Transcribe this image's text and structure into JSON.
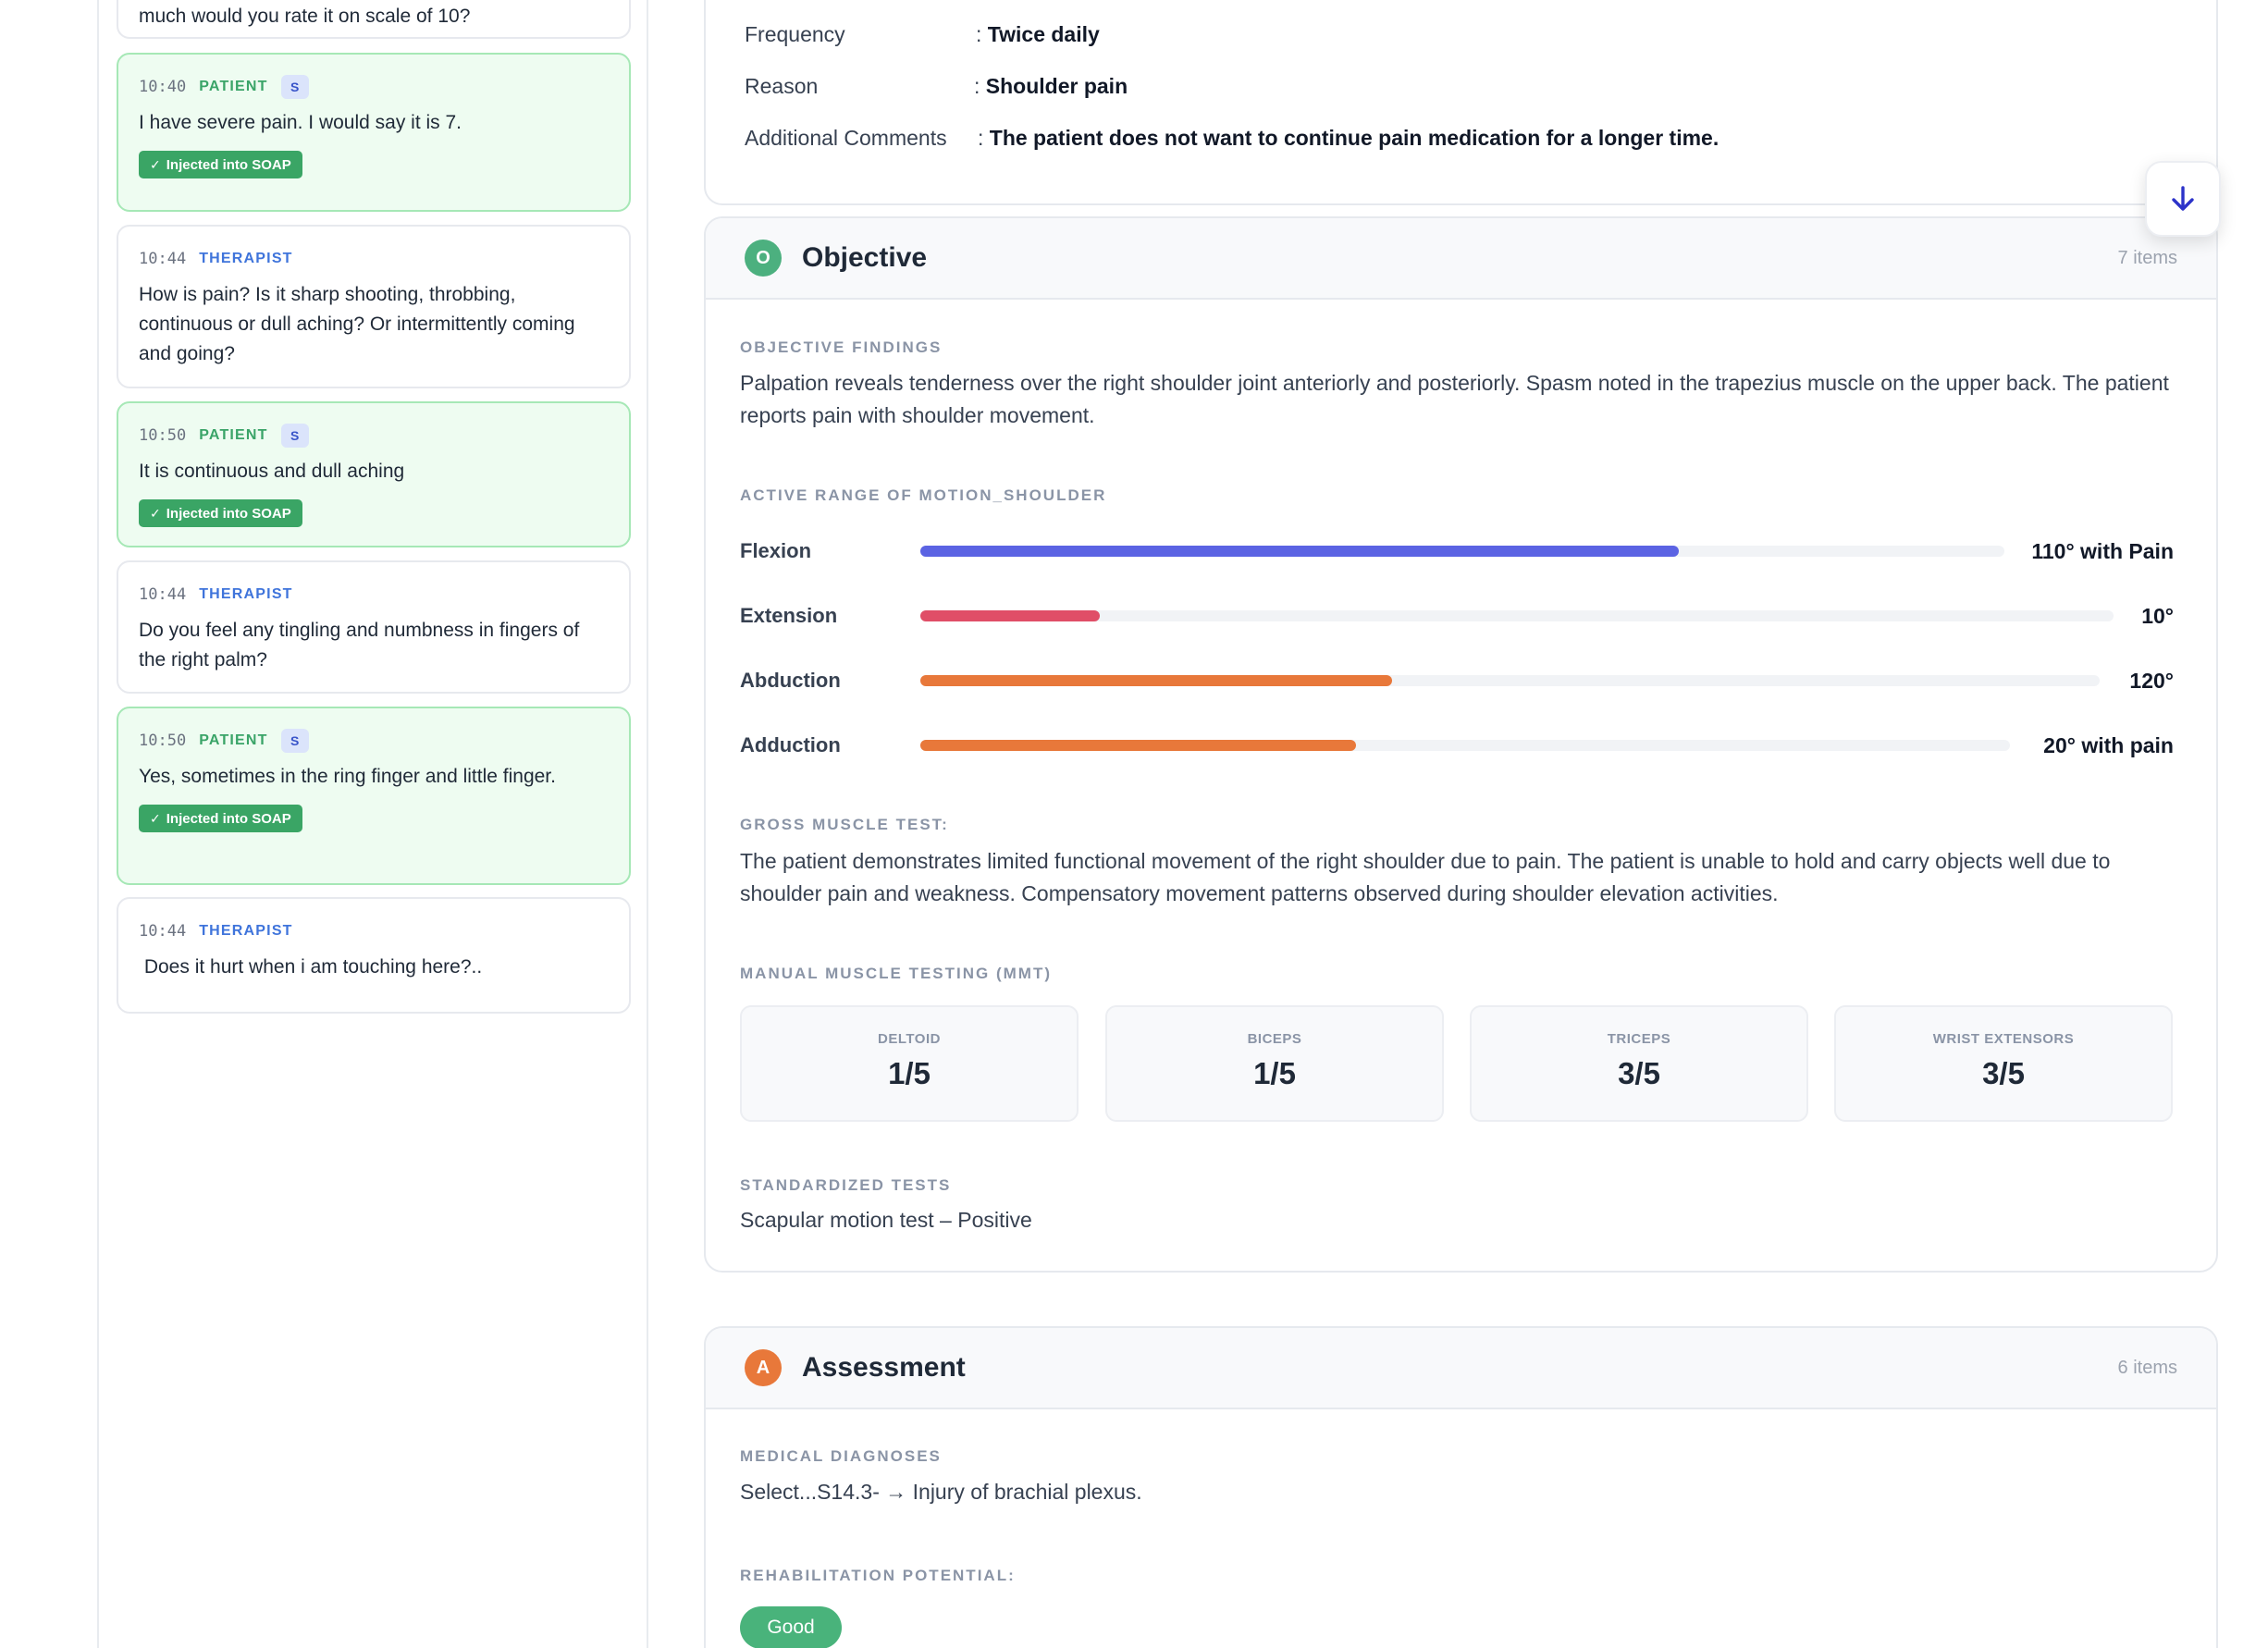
{
  "transcript": {
    "top_fragment": "much would you rate it on scale of 10?",
    "messages": [
      {
        "time": "10:40",
        "role": "PATIENT",
        "badge": "S",
        "text": "I have severe pain. I would say it is 7.",
        "injected": "Injected into SOAP"
      },
      {
        "time": "10:44",
        "role": "THERAPIST",
        "text": "How is pain? Is it sharp shooting, throbbing, continuous or dull aching? Or intermittently coming and going?"
      },
      {
        "time": "10:50",
        "role": "PATIENT",
        "badge": "S",
        "text": "It is continuous and dull aching",
        "injected": "Injected into SOAP"
      },
      {
        "time": "10:44",
        "role": "THERAPIST",
        "text": "Do you feel any tingling and numbness in fingers of the right palm?"
      },
      {
        "time": "10:50",
        "role": "PATIENT",
        "badge": "S",
        "text": "Yes, sometimes in the ring finger and little finger.",
        "injected": "Injected into SOAP"
      },
      {
        "time": "10:44",
        "role": "THERAPIST",
        "text": " Does it hurt when i am touching here?.."
      }
    ]
  },
  "subjective": {
    "rows": [
      {
        "label": "Frequency",
        "value": "Twice daily"
      },
      {
        "label": "Reason",
        "value": "Shoulder pain"
      },
      {
        "label": "Additional Comments",
        "value": "The patient does not want to continue pain medication for a longer time."
      }
    ]
  },
  "objective": {
    "letter": "O",
    "title": "Objective",
    "count": "7 items",
    "color": "#4cb07f",
    "findings_label": "OBJECTIVE FINDINGS",
    "findings_text": "Palpation reveals tenderness over the right shoulder joint anteriorly and posteriorly. Spasm noted in the trapezius muscle on the upper back. The patient reports pain with shoulder movement.",
    "rom_label": "ACTIVE RANGE OF MOTION_SHOULDER",
    "rom": [
      {
        "name": "Flexion",
        "value": "110° with Pain",
        "fill": 0.7,
        "color": "#5b63e3"
      },
      {
        "name": "Extension",
        "value": "10°",
        "fill": 0.15,
        "color": "#e04e67"
      },
      {
        "name": "Abduction",
        "value": "120°",
        "fill": 0.4,
        "color": "#e8783a"
      },
      {
        "name": "Adduction",
        "value": "20° with pain",
        "fill": 0.4,
        "color": "#e8783a"
      }
    ],
    "gross_label": "GROSS MUSCLE TEST:",
    "gross_text": "The patient demonstrates limited functional movement of the right shoulder due to pain. The patient is unable to hold and carry objects well due to shoulder pain and weakness. Compensatory movement patterns observed during shoulder elevation activities.",
    "mmt_label": "MANUAL MUSCLE TESTING (MMT)",
    "mmt": [
      {
        "name": "DELTOID",
        "score": "1/5"
      },
      {
        "name": "BICEPS",
        "score": "1/5"
      },
      {
        "name": "TRICEPS",
        "score": "3/5"
      },
      {
        "name": "WRIST EXTENSORS",
        "score": "3/5"
      }
    ],
    "std_label": "STANDARDIZED TESTS",
    "std_text": "Scapular motion test – Positive"
  },
  "assessment": {
    "letter": "A",
    "title": "Assessment",
    "count": "6 items",
    "color": "#e8783a",
    "diag_label": "MEDICAL DIAGNOSES",
    "diag_text": "Select...S14.3- → Injury of brachial plexus.",
    "rehab_label": "REHABILITATION POTENTIAL:",
    "rehab_value": "Good"
  },
  "scroll_button": {
    "icon": "arrow-down-icon"
  }
}
